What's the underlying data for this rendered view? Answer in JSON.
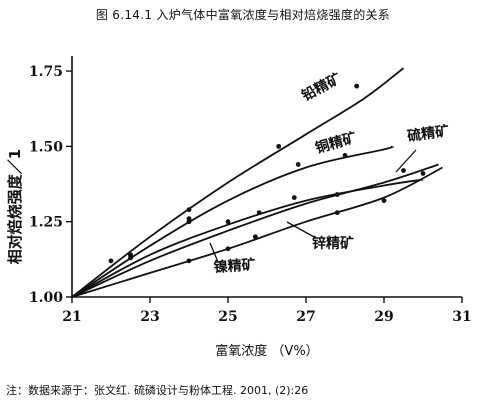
{
  "title": "图 6.14.1   入炉气体中富氧浓度与相对焙烧强度的关系",
  "note": "注：数据来源于：张文红. 硫磷设计与粉体工程. 2001, (2):26",
  "chart_data": {
    "type": "line",
    "xlabel": "富氧浓度  （V%）",
    "ylabel": "相对焙烧强度／1",
    "xlim": [
      21,
      31
    ],
    "ylim": [
      1.0,
      1.8
    ],
    "x_ticks": [
      21,
      23,
      25,
      27,
      29,
      31
    ],
    "x_tick_labels": [
      "21",
      "23",
      "25",
      "27",
      "29",
      "31"
    ],
    "y_ticks": [
      1.0,
      1.25,
      1.5,
      1.75
    ],
    "y_tick_labels": [
      "1.00",
      "1.25",
      "1.50",
      "1.75"
    ],
    "grid": false,
    "series": [
      {
        "name": "铅精矿",
        "line": [
          [
            21.0,
            1.0
          ],
          [
            23.0,
            1.2
          ],
          [
            25.0,
            1.38
          ],
          [
            27.0,
            1.54
          ],
          [
            28.5,
            1.66
          ],
          [
            29.5,
            1.76
          ]
        ],
        "points": [
          [
            22.5,
            1.14
          ],
          [
            24.0,
            1.29
          ],
          [
            26.3,
            1.5
          ],
          [
            28.3,
            1.7
          ]
        ]
      },
      {
        "name": "铜精矿",
        "line": [
          [
            21.0,
            1.0
          ],
          [
            23.0,
            1.17
          ],
          [
            25.0,
            1.32
          ],
          [
            27.0,
            1.43
          ],
          [
            29.0,
            1.49
          ],
          [
            29.2,
            1.5
          ]
        ],
        "points": [
          [
            22.5,
            1.13
          ],
          [
            24.0,
            1.26
          ],
          [
            26.8,
            1.44
          ],
          [
            28.0,
            1.47
          ]
        ]
      },
      {
        "name": "硫精矿",
        "line": [
          [
            21.0,
            1.0
          ],
          [
            23.0,
            1.12
          ],
          [
            25.0,
            1.22
          ],
          [
            27.0,
            1.31
          ],
          [
            29.0,
            1.38
          ],
          [
            30.4,
            1.44
          ]
        ],
        "points": [
          [
            22.5,
            1.13
          ],
          [
            24.0,
            1.25
          ],
          [
            25.0,
            1.25
          ],
          [
            26.7,
            1.33
          ],
          [
            29.5,
            1.42
          ]
        ]
      },
      {
        "name": "锌精矿",
        "line": [
          [
            21.0,
            1.0
          ],
          [
            23.0,
            1.14
          ],
          [
            25.0,
            1.24
          ],
          [
            27.0,
            1.32
          ],
          [
            29.0,
            1.37
          ],
          [
            30.0,
            1.39
          ]
        ],
        "points": [
          [
            22.5,
            1.14
          ],
          [
            24.0,
            1.25
          ],
          [
            25.8,
            1.28
          ],
          [
            27.8,
            1.34
          ]
        ]
      },
      {
        "name": "镍精矿",
        "line": [
          [
            21.0,
            1.0
          ],
          [
            23.0,
            1.08
          ],
          [
            25.0,
            1.16
          ],
          [
            27.0,
            1.25
          ],
          [
            29.0,
            1.33
          ],
          [
            30.5,
            1.43
          ]
        ],
        "points": [
          [
            22.0,
            1.12
          ],
          [
            24.0,
            1.12
          ],
          [
            25.0,
            1.16
          ],
          [
            25.7,
            1.2
          ],
          [
            27.8,
            1.28
          ],
          [
            29.0,
            1.32
          ],
          [
            30.0,
            1.41
          ]
        ]
      }
    ]
  }
}
